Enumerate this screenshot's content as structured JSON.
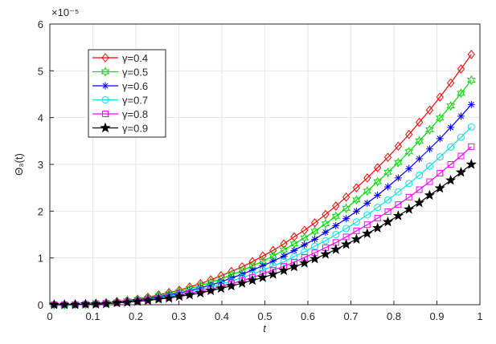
{
  "chart_data": {
    "type": "line",
    "xlabel": "t",
    "ylabel": "Θ₃(t)",
    "y_multiplier": "×10⁻⁵",
    "xlim": [
      0,
      1
    ],
    "xticks": [
      0,
      0.1,
      0.2,
      0.3,
      0.4,
      0.5,
      0.6,
      0.7,
      0.8,
      0.9,
      1
    ],
    "ylim": [
      0,
      6
    ],
    "yticks": [
      0,
      1,
      2,
      3,
      4,
      5,
      6
    ],
    "grid": true,
    "legend": "upper left",
    "x": [
      0.01,
      0.034,
      0.059,
      0.083,
      0.107,
      0.131,
      0.156,
      0.18,
      0.204,
      0.228,
      0.253,
      0.277,
      0.301,
      0.325,
      0.35,
      0.374,
      0.398,
      0.422,
      0.447,
      0.471,
      0.495,
      0.519,
      0.544,
      0.568,
      0.592,
      0.616,
      0.641,
      0.665,
      0.689,
      0.713,
      0.738,
      0.762,
      0.786,
      0.81,
      0.835,
      0.859,
      0.883,
      0.907,
      0.932,
      0.956,
      0.98
    ],
    "series": [
      {
        "name": "γ=0.4",
        "color": "#ff0000",
        "marker": "diamond",
        "values": [
          0,
          0,
          0.01,
          0.01,
          0.03,
          0.04,
          0.07,
          0.09,
          0.12,
          0.16,
          0.21,
          0.26,
          0.31,
          0.38,
          0.45,
          0.53,
          0.62,
          0.71,
          0.81,
          0.92,
          1.04,
          1.16,
          1.3,
          1.45,
          1.59,
          1.75,
          1.93,
          2.11,
          2.3,
          2.5,
          2.71,
          2.93,
          3.15,
          3.39,
          3.64,
          3.9,
          4.16,
          4.44,
          4.74,
          5.04,
          5.35
        ]
      },
      {
        "name": "γ=0.5",
        "color": "#00e000",
        "marker": "hexagram",
        "values": [
          0,
          0,
          0.01,
          0.01,
          0.02,
          0.04,
          0.06,
          0.08,
          0.11,
          0.14,
          0.19,
          0.23,
          0.28,
          0.34,
          0.41,
          0.48,
          0.55,
          0.64,
          0.73,
          0.83,
          0.93,
          1.04,
          1.17,
          1.3,
          1.43,
          1.57,
          1.73,
          1.89,
          2.06,
          2.24,
          2.43,
          2.63,
          2.83,
          3.04,
          3.27,
          3.5,
          3.74,
          3.99,
          4.25,
          4.52,
          4.8
        ]
      },
      {
        "name": "γ=0.6",
        "color": "#0000ff",
        "marker": "asterisk",
        "values": [
          0,
          0,
          0.01,
          0.01,
          0.02,
          0.03,
          0.05,
          0.07,
          0.1,
          0.13,
          0.17,
          0.21,
          0.25,
          0.3,
          0.36,
          0.42,
          0.49,
          0.57,
          0.65,
          0.74,
          0.83,
          0.93,
          1.04,
          1.16,
          1.28,
          1.4,
          1.55,
          1.69,
          1.84,
          2,
          2.17,
          2.34,
          2.52,
          2.71,
          2.91,
          3.12,
          3.33,
          3.55,
          3.79,
          4.03,
          4.28
        ]
      },
      {
        "name": "γ=0.7",
        "color": "#00e5e5",
        "marker": "circle",
        "values": [
          0,
          0,
          0,
          0.01,
          0.02,
          0.03,
          0.05,
          0.06,
          0.09,
          0.11,
          0.15,
          0.18,
          0.22,
          0.27,
          0.32,
          0.38,
          0.44,
          0.5,
          0.58,
          0.65,
          0.74,
          0.83,
          0.92,
          1.03,
          1.13,
          1.25,
          1.37,
          1.5,
          1.63,
          1.77,
          1.92,
          2.08,
          2.24,
          2.41,
          2.59,
          2.77,
          2.96,
          3.16,
          3.37,
          3.58,
          3.8
        ]
      },
      {
        "name": "γ=0.8",
        "color": "#ff00ff",
        "marker": "square",
        "values": [
          0,
          0,
          0,
          0.01,
          0.02,
          0.03,
          0.04,
          0.06,
          0.08,
          0.1,
          0.13,
          0.16,
          0.2,
          0.24,
          0.29,
          0.33,
          0.39,
          0.45,
          0.51,
          0.58,
          0.66,
          0.74,
          0.82,
          0.91,
          1.01,
          1.11,
          1.22,
          1.33,
          1.45,
          1.58,
          1.71,
          1.85,
          1.99,
          2.14,
          2.3,
          2.46,
          2.63,
          2.81,
          3,
          3.18,
          3.38
        ]
      },
      {
        "name": "γ=0.9",
        "color": "#000000",
        "marker": "pentagram",
        "values": [
          0,
          0,
          0,
          0.01,
          0.01,
          0.02,
          0.04,
          0.05,
          0.07,
          0.09,
          0.12,
          0.14,
          0.18,
          0.21,
          0.25,
          0.3,
          0.35,
          0.4,
          0.46,
          0.52,
          0.58,
          0.65,
          0.73,
          0.81,
          0.89,
          0.98,
          1.08,
          1.18,
          1.29,
          1.4,
          1.52,
          1.64,
          1.77,
          1.9,
          2.04,
          2.18,
          2.34,
          2.49,
          2.66,
          2.83,
          3
        ]
      }
    ]
  }
}
